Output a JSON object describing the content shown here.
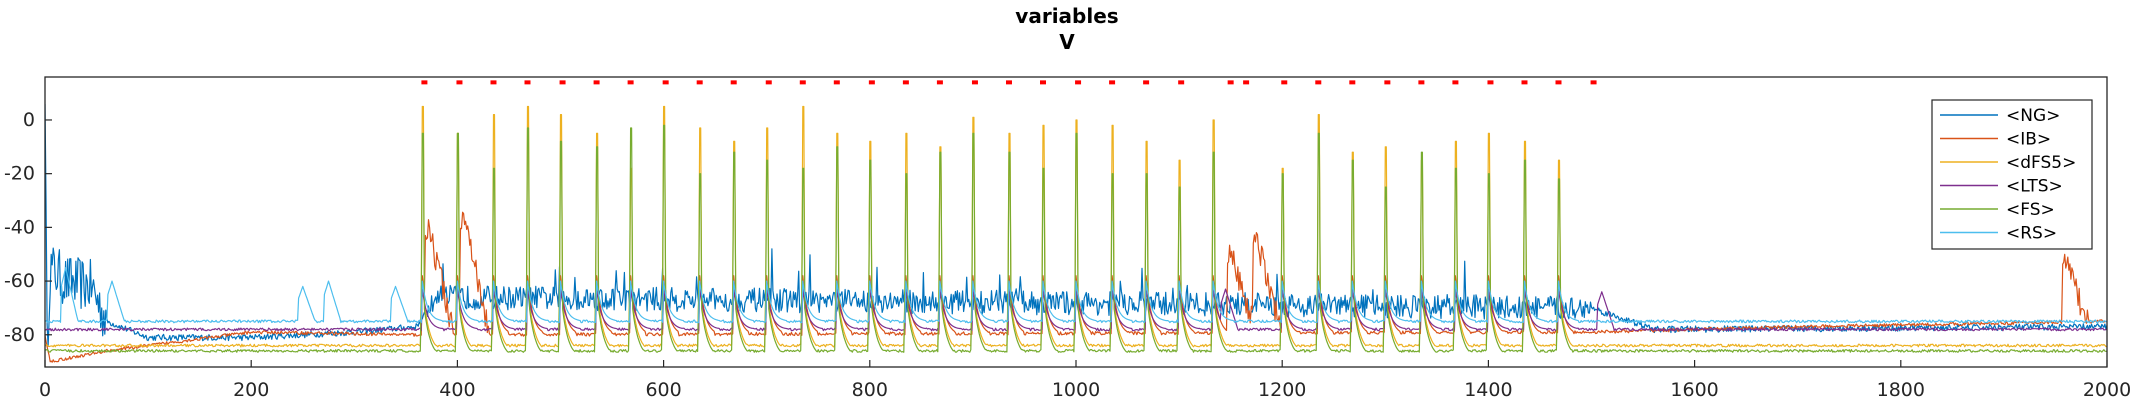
{
  "chart_data": {
    "type": "line",
    "title": "variables",
    "subtitle": "V",
    "xlabel": "",
    "ylabel": "",
    "xlim": [
      0,
      2000
    ],
    "ylim": [
      -92,
      16
    ],
    "xticks": [
      0,
      200,
      400,
      600,
      800,
      1000,
      1200,
      1400,
      1600,
      1800,
      2000
    ],
    "yticks": [
      0,
      -20,
      -40,
      -60,
      -80
    ],
    "grid": false,
    "legend_position": "top-right",
    "series": [
      {
        "name": "<NG>",
        "color": "#0072BD",
        "baseline": -73,
        "noise": 4.5,
        "style": "noisy",
        "initial": [
          [
            0,
            14
          ],
          [
            2,
            -85
          ],
          [
            5,
            -55
          ],
          [
            20,
            -60
          ],
          [
            45,
            -62
          ],
          [
            60,
            -75
          ],
          [
            100,
            -81
          ],
          [
            200,
            -81
          ],
          [
            300,
            -79
          ],
          [
            360,
            -77
          ],
          [
            380,
            -66
          ],
          [
            1500,
            -70
          ],
          [
            1560,
            -78
          ],
          [
            2000,
            -77
          ]
        ]
      },
      {
        "name": "<IB>",
        "color": "#D95319",
        "baseline": -80,
        "noise": 1.2,
        "style": "bursting",
        "initial": [
          [
            0,
            -80
          ],
          [
            5,
            -90
          ],
          [
            60,
            -86
          ],
          [
            200,
            -79
          ],
          [
            360,
            -80
          ],
          [
            1500,
            -79
          ],
          [
            1700,
            -77
          ],
          [
            2000,
            -75
          ]
        ],
        "bursts": [
          [
            372,
            -40
          ],
          [
            406,
            -36
          ],
          [
            1150,
            -50
          ],
          [
            1175,
            -44
          ],
          [
            1960,
            -52
          ]
        ]
      },
      {
        "name": "<dFS5>",
        "color": "#EDB120",
        "baseline": -84,
        "noise": 1.0,
        "style": "spiking",
        "spike_peaks": [
          5,
          -5,
          2,
          5,
          2,
          -5,
          -18,
          5,
          -3,
          -8,
          -3,
          5,
          -5,
          -8,
          -5,
          -10,
          1,
          -5,
          -2,
          0,
          -2,
          -8,
          -15,
          0,
          -18,
          2,
          -12,
          -10,
          -15,
          -8,
          -5,
          -8,
          -15
        ]
      },
      {
        "name": "<LTS>",
        "color": "#7E2F8E",
        "baseline": -78,
        "noise": 1.0,
        "style": "smooth",
        "events": [
          [
            1145,
            -63
          ],
          [
            1510,
            -64
          ]
        ]
      },
      {
        "name": "<FS>",
        "color": "#77AC30",
        "baseline": -86,
        "noise": 1.0,
        "style": "spiking",
        "spike_peaks": [
          -5,
          -5,
          -18,
          -3,
          -8,
          -10,
          -3,
          -2,
          -20,
          -12,
          -15,
          -18,
          -10,
          -15,
          -20,
          -12,
          -5,
          -12,
          -18,
          -5,
          -20,
          -20,
          -25,
          -12,
          -20,
          -5,
          -15,
          -25,
          -12,
          -18,
          -20,
          -15,
          -22
        ]
      },
      {
        "name": "<RS>",
        "color": "#4DBEEE",
        "baseline": -75,
        "noise": 1.0,
        "style": "smooth",
        "events": [
          [
            20,
            -55
          ],
          [
            65,
            -60
          ],
          [
            250,
            -62
          ],
          [
            275,
            -60
          ],
          [
            340,
            -62
          ]
        ]
      }
    ],
    "spike_times": [
      366,
      400,
      435,
      468,
      500,
      535,
      568,
      600,
      635,
      668,
      700,
      735,
      768,
      800,
      835,
      868,
      900,
      935,
      968,
      1000,
      1035,
      1068,
      1100,
      1133,
      1200,
      1235,
      1268,
      1300,
      1335,
      1368,
      1400,
      1435,
      1468
    ],
    "raster_markers": {
      "color": "#ff0000",
      "y": 14,
      "x": [
        368,
        402,
        435,
        468,
        502,
        535,
        568,
        602,
        635,
        668,
        702,
        735,
        768,
        802,
        835,
        868,
        902,
        935,
        968,
        1002,
        1035,
        1068,
        1102,
        1150,
        1165,
        1202,
        1235,
        1268,
        1302,
        1335,
        1368,
        1402,
        1435,
        1468,
        1502
      ]
    }
  }
}
